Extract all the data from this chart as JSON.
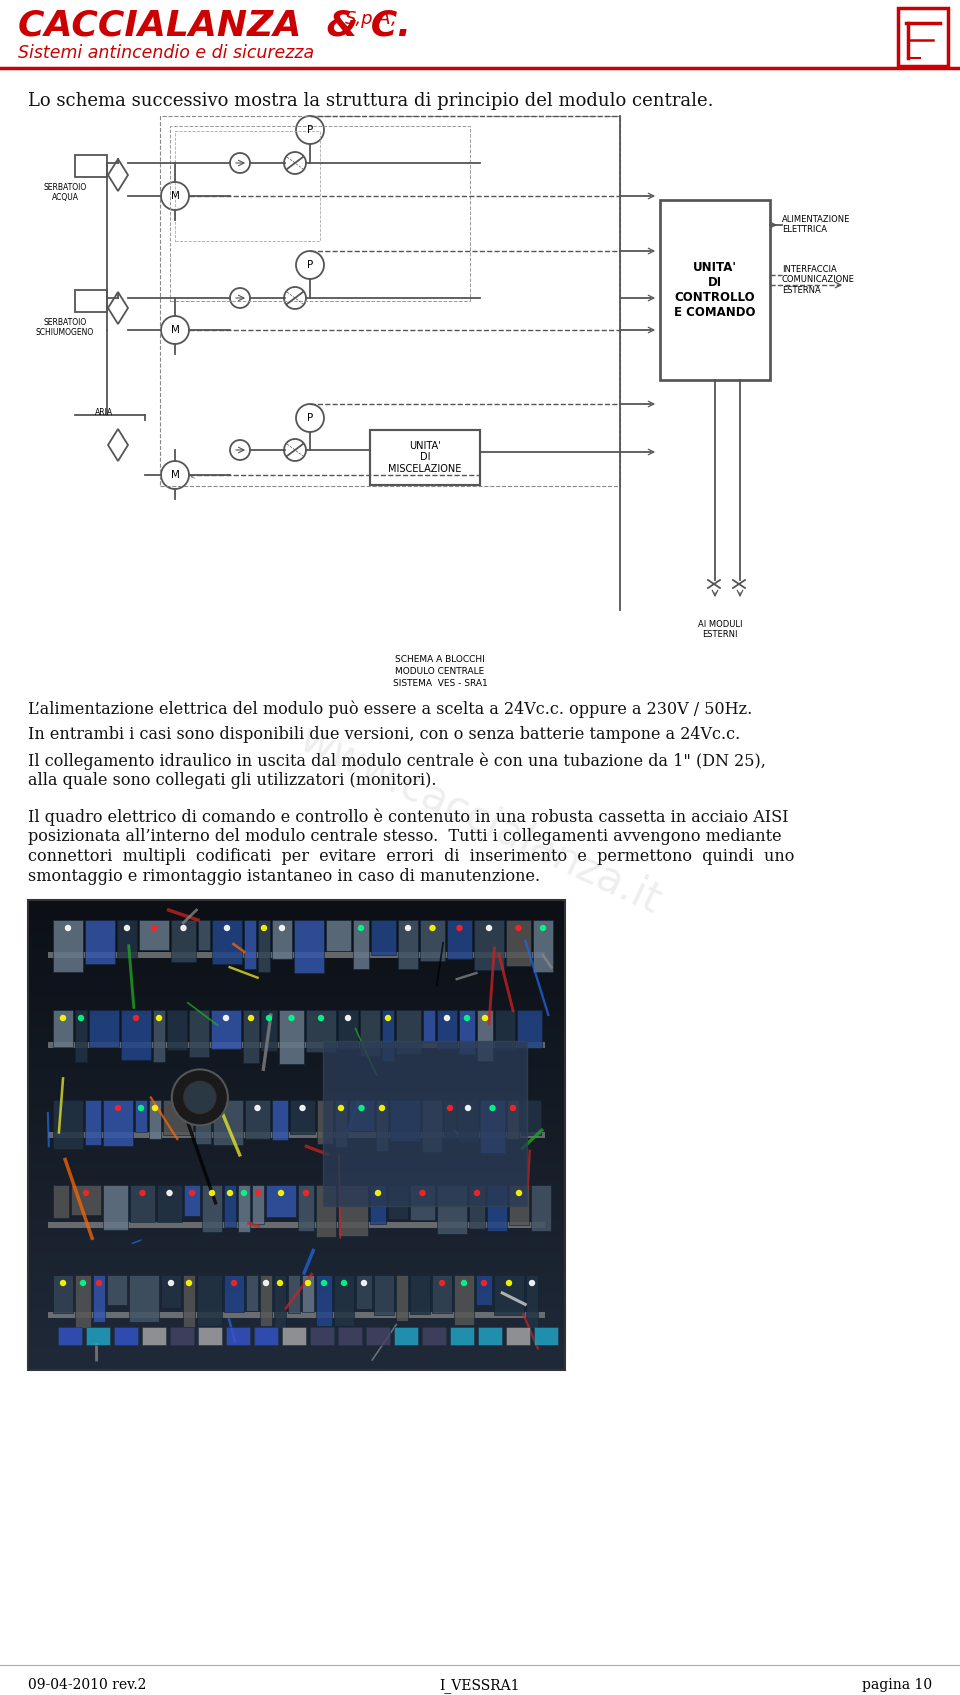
{
  "bg_color": "#ffffff",
  "header_red": "#cc0000",
  "company_name": "CACCIALANZA  & C.",
  "company_suffix": " S,p,A,",
  "subtitle": "Sistemi antincendio e di sicurezza",
  "footer_text": "09-04-2010 rev.2",
  "footer_center": "I_VESSRA1",
  "footer_right": "pagina 10",
  "body_text_1": "Lo schema successivo mostra la struttura di principio del modulo centrale.",
  "body_text_2": "L’alimentazione elettrica del modulo può essere a scelta a 24Vc.c. oppure a 230V / 50Hz.",
  "body_text_3": "In entrambi i casi sono disponibili due versioni, con o senza batterie tampone a 24Vc.c.",
  "body_text_4a": "Il collegamento idraulico in uscita dal modulo centrale è con una tubazione da 1\" (DN 25),",
  "body_text_4b": "alla quale sono collegati gli utilizzatori (monitori).",
  "body_text_5": [
    "Il quadro elettrico di comando e controllo è contenuto in una robusta cassetta in acciaio AISI",
    "posizionata all’interno del modulo centrale stesso.  Tutti i collegamenti avvengono mediante",
    "connettori  multipli  codificati  per  evitare  errori  di  inserimento  e  permettono  quindi  uno",
    "smontaggio e rimontaggio istantaneo in caso di manutenzione."
  ],
  "text_color": "#111111",
  "watermark_color": "#d0d0d0"
}
